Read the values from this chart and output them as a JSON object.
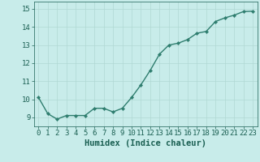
{
  "xlabel": "Humidex (Indice chaleur)",
  "x": [
    0,
    1,
    2,
    3,
    4,
    5,
    6,
    7,
    8,
    9,
    10,
    11,
    12,
    13,
    14,
    15,
    16,
    17,
    18,
    19,
    20,
    21,
    22,
    23
  ],
  "y": [
    10.1,
    9.2,
    8.9,
    9.1,
    9.1,
    9.1,
    9.5,
    9.5,
    9.3,
    9.5,
    10.1,
    10.8,
    11.6,
    12.5,
    13.0,
    13.1,
    13.3,
    13.65,
    13.75,
    14.3,
    14.5,
    14.65,
    14.85,
    14.87
  ],
  "line_color": "#2e7d6e",
  "marker": "D",
  "marker_size": 2.2,
  "bg_color": "#c8ecea",
  "grid_color": "#b0d8d4",
  "tick_color": "#1a5f52",
  "label_color": "#1a5f52",
  "ylim": [
    8.5,
    15.4
  ],
  "yticks": [
    9,
    10,
    11,
    12,
    13,
    14,
    15
  ],
  "xlim": [
    -0.5,
    23.5
  ],
  "xticks": [
    0,
    1,
    2,
    3,
    4,
    5,
    6,
    7,
    8,
    9,
    10,
    11,
    12,
    13,
    14,
    15,
    16,
    17,
    18,
    19,
    20,
    21,
    22,
    23
  ],
  "xlabel_fontsize": 7.5,
  "tick_fontsize": 6.5,
  "line_width": 1.0
}
